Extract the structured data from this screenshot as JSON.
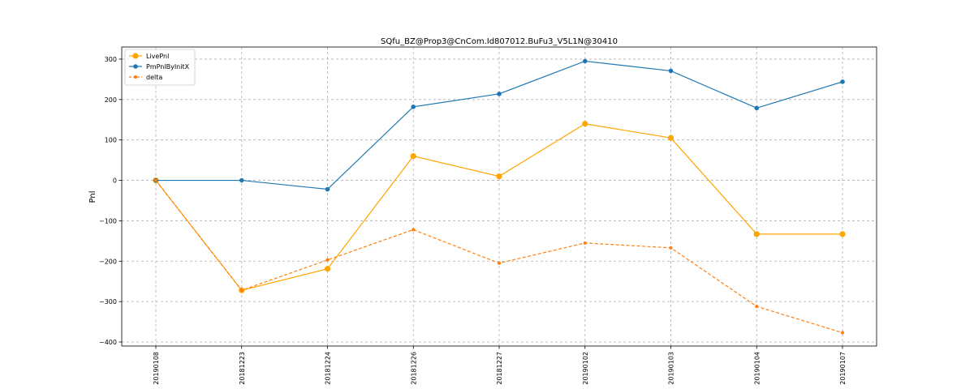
{
  "chart_data": {
    "type": "line",
    "title": "SQfu_BZ@Prop3@CnCom.Id807012.BuFu3_V5L1N@30410",
    "xlabel": "",
    "ylabel": "Pnl",
    "categories": [
      "20190108",
      "20181223",
      "20181224",
      "20181226",
      "20181227",
      "20190102",
      "20190103",
      "20190104",
      "20190107"
    ],
    "ylim": [
      -410,
      330
    ],
    "yticks": [
      -400,
      -300,
      -200,
      -100,
      0,
      100,
      200,
      300
    ],
    "ytick_labels": [
      "−400",
      "−300",
      "−200",
      "−100",
      "0",
      "100",
      "200",
      "300"
    ],
    "grid": true,
    "legend_position": "top-left",
    "series": [
      {
        "name": "LivePnl",
        "values": [
          0,
          -272,
          -219,
          60,
          10,
          140,
          105,
          -133,
          -133
        ],
        "color": "#ffa500",
        "line_style": "solid",
        "marker": "circle-large"
      },
      {
        "name": "PmPnlByInitX",
        "values": [
          0,
          0,
          -22,
          182,
          214,
          295,
          271,
          179,
          244
        ],
        "color": "#1f77b4",
        "line_style": "solid",
        "marker": "circle"
      },
      {
        "name": "delta",
        "values": [
          0,
          -272,
          -197,
          -122,
          -205,
          -155,
          -167,
          -312,
          -377
        ],
        "color": "#ff7f0e",
        "line_style": "dashed",
        "marker": "circle-small"
      }
    ]
  }
}
